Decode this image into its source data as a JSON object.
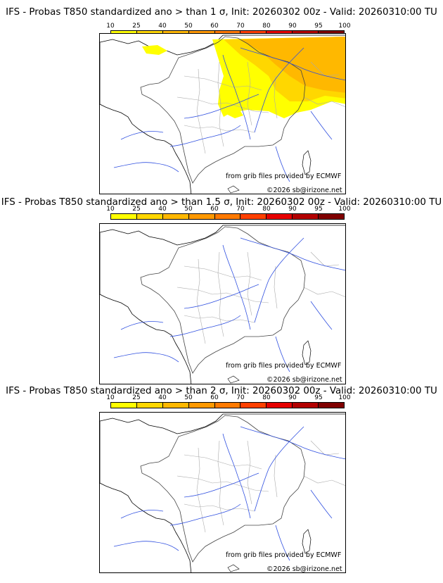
{
  "colorbar": {
    "ticks": [
      "10",
      "25",
      "40",
      "50",
      "60",
      "70",
      "80",
      "90",
      "95",
      "100"
    ],
    "colors": [
      "#ffff00",
      "#ffd700",
      "#ffb800",
      "#ff9900",
      "#ff7a00",
      "#ff4000",
      "#e60000",
      "#b30000",
      "#800000"
    ]
  },
  "panels": [
    {
      "title": "IFS - Probas T850  standardized ano > than 1 σ, Init: 20260302 00z - Valid: 20260310:00 TU",
      "source": "from grib files provided by ECMWF",
      "copyright": "©2026 sb@irizone.net",
      "has_shading": true
    },
    {
      "title": "IFS - Probas T850  standardized ano > than 1.5 σ, Init: 20260302 00z - Valid: 20260310:00 TU",
      "source": "from grib files provided by ECMWF",
      "copyright": "©2026 sb@irizone.net",
      "has_shading": false
    },
    {
      "title": "IFS - Probas T850  standardized ano > than 2 σ, Init: 20260302 00z - Valid: 20260310:00 TU",
      "source": "from grib files provided by ECMWF",
      "copyright": "©2026 sb@irizone.net",
      "has_shading": false
    }
  ]
}
